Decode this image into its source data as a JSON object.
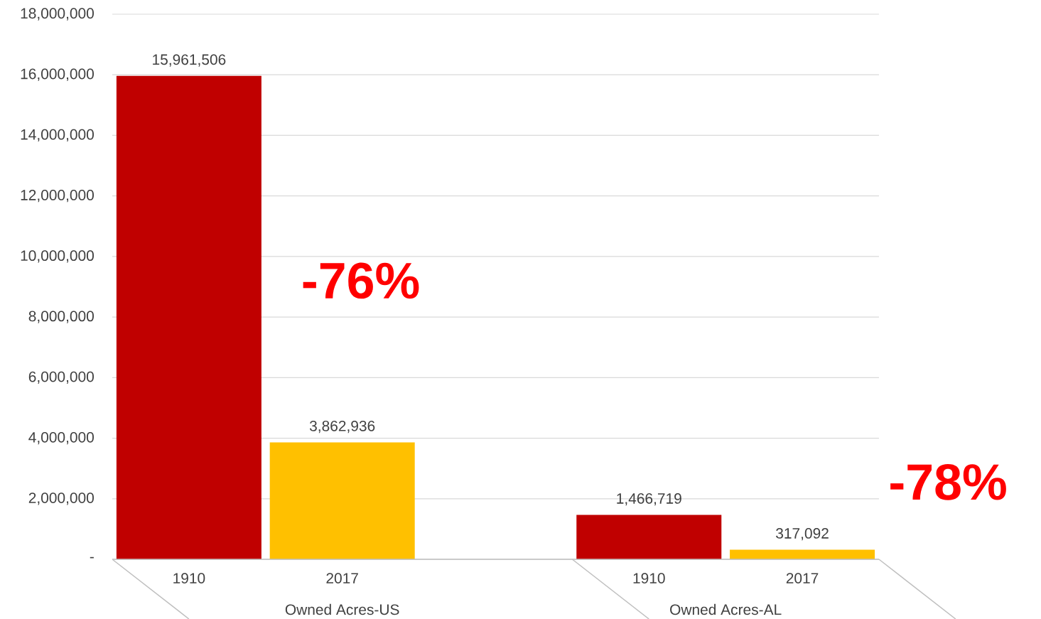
{
  "chart_data": {
    "type": "bar",
    "categories": [
      "1910",
      "2017",
      null,
      "1910",
      "2017"
    ],
    "values": [
      15961506,
      3862936,
      null,
      1466719,
      317092
    ],
    "colors": [
      "#c00000",
      "#ffc000",
      null,
      "#c00000",
      "#ffc000"
    ],
    "value_labels": [
      "15,961,506",
      "3,862,936",
      null,
      "1,466,719",
      "317,092"
    ],
    "annotations": [
      "Owned Acres-US",
      "Owned Acres-AL",
      "-76%",
      "-78%"
    ],
    "ylim": [
      0,
      18000000
    ],
    "yticks": [
      {
        "value": 0,
        "label": "-"
      },
      {
        "value": 2000000,
        "label": "2,000,000"
      },
      {
        "value": 4000000,
        "label": "4,000,000"
      },
      {
        "value": 6000000,
        "label": "6,000,000"
      },
      {
        "value": 8000000,
        "label": "8,000,000"
      },
      {
        "value": 10000000,
        "label": "10,000,000"
      },
      {
        "value": 12000000,
        "label": "12,000,000"
      },
      {
        "value": 14000000,
        "label": "14,000,000"
      },
      {
        "value": 16000000,
        "label": "16,000,000"
      },
      {
        "value": 18000000,
        "label": "18,000,000"
      }
    ],
    "grid": "y"
  }
}
